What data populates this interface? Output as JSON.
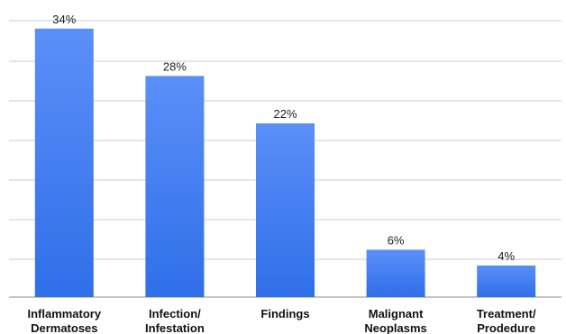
{
  "chart_data": {
    "type": "bar",
    "categories": [
      [
        "Inflammatory",
        "Dermatoses"
      ],
      [
        "Infection/",
        "Infestation"
      ],
      [
        "Findings"
      ],
      [
        "Malignant",
        "Neoplasms"
      ],
      [
        "Treatment/",
        "Prodedure"
      ]
    ],
    "values": [
      34,
      28,
      22,
      6,
      4
    ],
    "value_labels": [
      "34%",
      "28%",
      "22%",
      "6%",
      "4%"
    ],
    "ylim": [
      0,
      35
    ],
    "grid": true,
    "bar_color": "#4f86f7",
    "bar_color_top": "#5b8ff9",
    "bar_color_bottom": "#2f6fe8",
    "gridline_color": "#cccccc"
  }
}
